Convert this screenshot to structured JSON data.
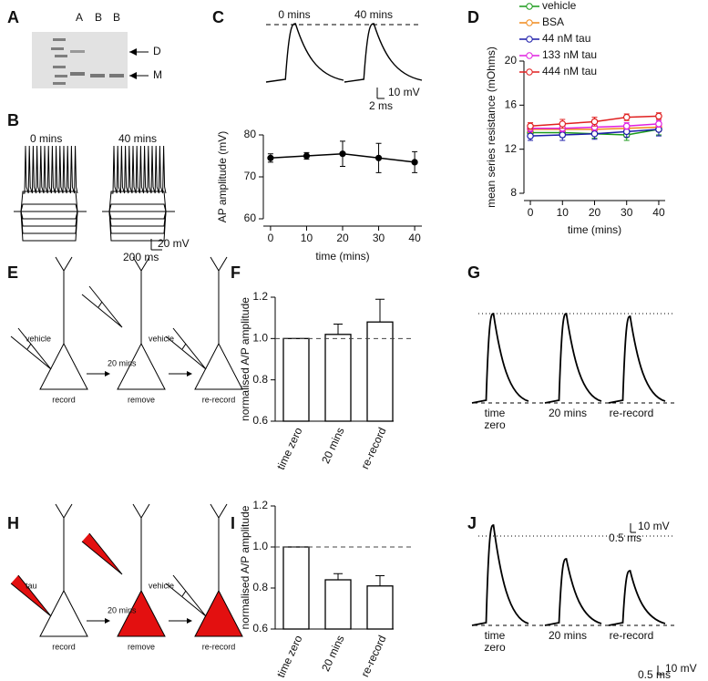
{
  "panels": {
    "letters": [
      "A",
      "B",
      "C",
      "D",
      "E",
      "F",
      "G",
      "H",
      "I",
      "J"
    ],
    "A": {
      "lanes": [
        "A",
        "B",
        "B"
      ],
      "bands": [
        "D",
        "M"
      ]
    },
    "B": {
      "labels": [
        "0 mins",
        "40 mins"
      ],
      "scale_y": "20 mV",
      "scale_x": "200 ms"
    },
    "C": {
      "labels": [
        "0 mins",
        "40 mins"
      ],
      "scale_y": "10 mV",
      "scale_x": "2 ms"
    },
    "E": {
      "labels": [
        "vehicle",
        "20 mins",
        "vehicle",
        "record",
        "remove",
        "re-record"
      ]
    },
    "G": {
      "labels": [
        "time zero",
        "20 mins",
        "re-record"
      ],
      "scale_y": "10 mV",
      "scale_x": "0.5 ms"
    },
    "H": {
      "labels": [
        "tau",
        "20 mins",
        "vehicle",
        "record",
        "remove",
        "re-record"
      ]
    },
    "J": {
      "labels": [
        "time zero",
        "20 mins",
        "re-record"
      ],
      "scale_y": "10 mV",
      "scale_x": "0.5 ms"
    }
  },
  "chart_data": [
    {
      "type": "line",
      "ylabel": "AP amplitude (mV)",
      "xlabel": "time (mins)",
      "x": [
        0,
        10,
        20,
        30,
        40
      ],
      "series": [
        {
          "color": "#000000",
          "marker": "filled",
          "values": [
            74.5,
            75,
            75.5,
            74.5,
            73.5
          ],
          "errors": [
            1,
            0.8,
            3,
            3.5,
            2.5
          ]
        }
      ],
      "xlim": [
        -2,
        42
      ],
      "ylim": [
        60,
        80
      ],
      "xticks": [
        0,
        10,
        20,
        30,
        40
      ],
      "yticks": [
        60,
        70,
        80
      ]
    },
    {
      "type": "line",
      "ylabel": "mean series resistance (mOhms)",
      "xlabel": "time (mins)",
      "x": [
        0,
        10,
        20,
        30,
        40
      ],
      "series": [
        {
          "name": "vehicle",
          "color": "#1a9a1a",
          "marker": "open",
          "values": [
            13.5,
            13.5,
            13.4,
            13.3,
            13.8
          ],
          "errors": [
            0.4,
            0.4,
            0.4,
            0.5,
            0.5
          ]
        },
        {
          "name": "BSA",
          "color": "#f08a1c",
          "marker": "open",
          "values": [
            13.8,
            13.8,
            13.8,
            13.9,
            14
          ],
          "errors": [
            0.3,
            0.3,
            0.3,
            0.3,
            0.4
          ]
        },
        {
          "name": "44 nM tau",
          "color": "#1c1caa",
          "marker": "open",
          "values": [
            13.2,
            13.3,
            13.4,
            13.6,
            13.8
          ],
          "errors": [
            0.4,
            0.5,
            0.5,
            0.5,
            0.6
          ]
        },
        {
          "name": "133 nM tau",
          "color": "#e020e0",
          "marker": "open",
          "values": [
            13.9,
            13.9,
            14,
            14.1,
            14.3
          ],
          "errors": [
            0.3,
            0.3,
            0.3,
            0.3,
            0.3
          ]
        },
        {
          "name": "444 nM tau",
          "color": "#e02020",
          "marker": "open",
          "values": [
            14.1,
            14.3,
            14.5,
            14.9,
            15
          ],
          "errors": [
            0.3,
            0.4,
            0.4,
            0.3,
            0.3
          ]
        }
      ],
      "xlim": [
        -2,
        42
      ],
      "ylim": [
        8,
        20
      ],
      "xticks": [
        0,
        10,
        20,
        30,
        40
      ],
      "yticks": [
        8,
        12,
        16,
        20
      ],
      "legend": "top"
    },
    {
      "type": "bar",
      "ylabel": "normalised A/P amplitude",
      "categories": [
        "time zero",
        "20 mins",
        "re-record"
      ],
      "values": [
        1.0,
        1.02,
        1.08
      ],
      "errors": [
        0,
        0.05,
        0.11
      ],
      "color": "#ffffff",
      "ylim": [
        0.6,
        1.2
      ],
      "yticks": [
        0.6,
        0.8,
        {
          "value": 1,
          "label": "1.0"
        },
        1.2
      ],
      "refline": 1
    },
    {
      "type": "bar",
      "ylabel": "normalised A/P amplitude",
      "categories": [
        "time zero",
        "20 mins",
        "re-record"
      ],
      "values": [
        1.0,
        0.84,
        0.81
      ],
      "errors": [
        0,
        0.03,
        0.05
      ],
      "color": "#ffffff",
      "ylim": [
        0.6,
        1.2
      ],
      "yticks": [
        0.6,
        0.8,
        {
          "value": 1,
          "label": "1.0"
        },
        1.2
      ],
      "refline": 1
    }
  ]
}
